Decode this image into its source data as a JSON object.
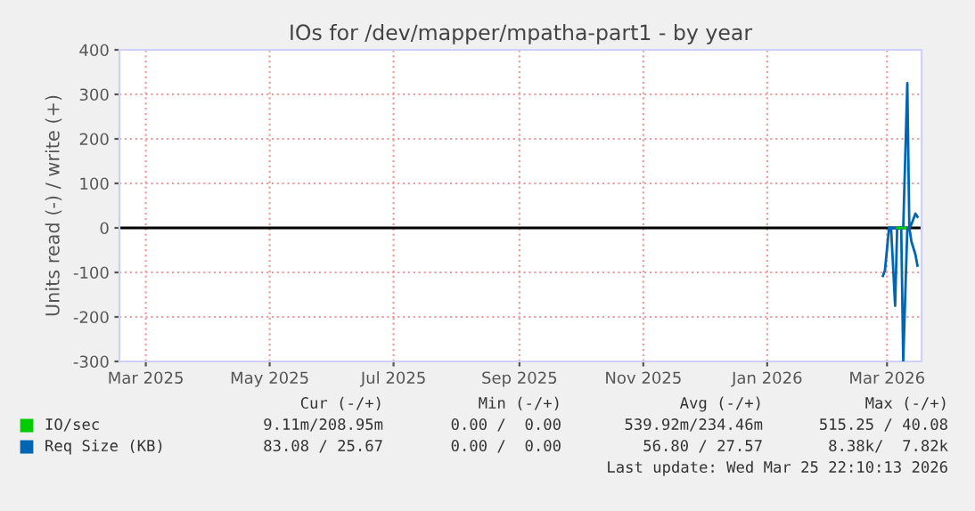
{
  "chart_data": {
    "type": "line",
    "title": "IOs for /dev/mapper/mpatha-part1 - by year",
    "ylabel": "Units read (-) / write (+)",
    "xlim": [
      "2025-02-16",
      "2026-03-18"
    ],
    "xticks": [
      {
        "value": "2025-03-01",
        "label": "Mar 2025"
      },
      {
        "value": "2025-05-01",
        "label": "May 2025"
      },
      {
        "value": "2025-07-01",
        "label": "Jul 2025"
      },
      {
        "value": "2025-09-01",
        "label": "Sep 2025"
      },
      {
        "value": "2025-11-01",
        "label": "Nov 2025"
      },
      {
        "value": "2026-01-01",
        "label": "Jan 2026"
      },
      {
        "value": "2026-03-01",
        "label": "Mar 2026"
      }
    ],
    "ylim": [
      -300,
      400
    ],
    "yticks": [
      -300,
      -200,
      -100,
      0,
      100,
      200,
      300,
      400
    ],
    "grid": true,
    "legend": "bottom",
    "ref_lines": [
      {
        "axis": "y",
        "value": 0,
        "color": "#000000"
      }
    ],
    "series": [
      {
        "name": "IO/sec",
        "color": "#00cc00",
        "x": [
          "2026-03-06",
          "2026-03-08",
          "2026-03-10"
        ],
        "values": [
          0,
          0,
          0
        ]
      },
      {
        "name": "Req Size (KB)",
        "color": "#0066b3",
        "x": [
          "2026-02-27",
          "2026-02-28",
          "2026-03-02",
          "2026-03-03",
          "2026-03-05",
          "2026-03-06",
          "2026-03-08",
          "2026-03-09",
          "2026-03-11",
          "2026-03-12",
          "2026-03-13",
          "2026-03-15",
          "2026-03-16"
        ],
        "values": [
          -108,
          -95,
          0,
          0,
          -175,
          0,
          0,
          -299,
          0,
          0,
          -30,
          -60,
          -85
        ]
      },
      {
        "color": "#0066b3",
        "x": [
          "2026-03-02",
          "2026-03-09",
          "2026-03-11",
          "2026-03-12",
          "2026-03-13",
          "2026-03-15",
          "2026-03-16"
        ],
        "values": [
          0,
          0,
          325,
          0,
          8,
          32,
          25
        ]
      }
    ],
    "annotations": [
      "Cur (-/+)",
      "Min (-/+)",
      "Avg (-/+)",
      "Max (-/+)",
      "9.11m/208.95m",
      "0.00 /  0.00",
      "539.92m/234.46m",
      "515.25 / 40.08",
      "83.08 / 25.67",
      "0.00 /  0.00",
      "56.80 / 27.57",
      "8.38k/  7.82k",
      "Last update: Wed Mar 25 22:10:13 2026"
    ]
  }
}
